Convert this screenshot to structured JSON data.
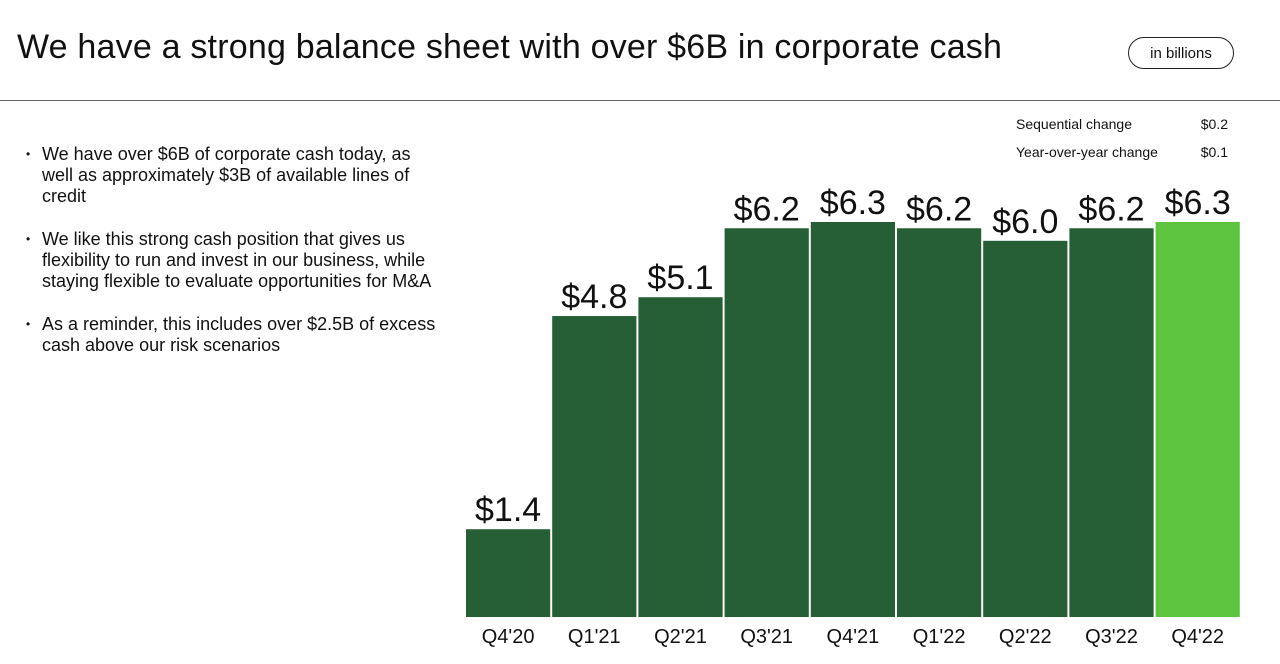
{
  "title": "We have a strong balance sheet with over $6B in corporate cash",
  "unit_label": "in billions",
  "stats": [
    {
      "label": "Sequential change",
      "value": "$0.2"
    },
    {
      "label": "Year-over-year change",
      "value": "$0.1"
    }
  ],
  "bullets": [
    "We have over $6B of corporate cash today, as well as approximately $3B of available lines of credit",
    "We like this strong cash position that gives us flexibility to run and invest in our business, while staying flexible to evaluate opportunities for M&A",
    "As a reminder, this includes over $2.5B of excess cash above our risk scenarios"
  ],
  "colors": {
    "bar": "#265e35",
    "highlight_bar": "#5cc43e",
    "text": "#111111"
  },
  "chart_data": {
    "type": "bar",
    "categories": [
      "Q4'20",
      "Q1'21",
      "Q2'21",
      "Q3'21",
      "Q4'21",
      "Q1'22",
      "Q2'22",
      "Q3'22",
      "Q4'22"
    ],
    "values": [
      1.4,
      4.8,
      5.1,
      6.2,
      6.3,
      6.2,
      6.0,
      6.2,
      6.3
    ],
    "data_labels": [
      "$1.4",
      "$4.8",
      "$5.1",
      "$6.2",
      "$6.3",
      "$6.2",
      "$6.0",
      "$6.2",
      "$6.3"
    ],
    "highlight_index": 8,
    "ylim": [
      0,
      6.3
    ],
    "grid": false,
    "legend": "none"
  }
}
